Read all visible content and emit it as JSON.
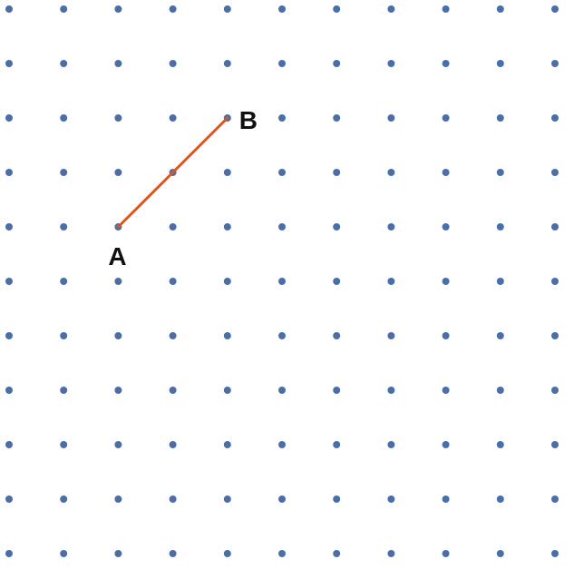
{
  "grid": {
    "columns": 11,
    "rows": 11,
    "dot_color": "#4a6fa8"
  },
  "segment": {
    "color": "#e0531c",
    "from": "A",
    "to": "B"
  },
  "points": [
    {
      "name": "A",
      "label": "A",
      "col": 2,
      "row": 4
    },
    {
      "name": "B",
      "label": "B",
      "col": 4,
      "row": 2
    }
  ]
}
